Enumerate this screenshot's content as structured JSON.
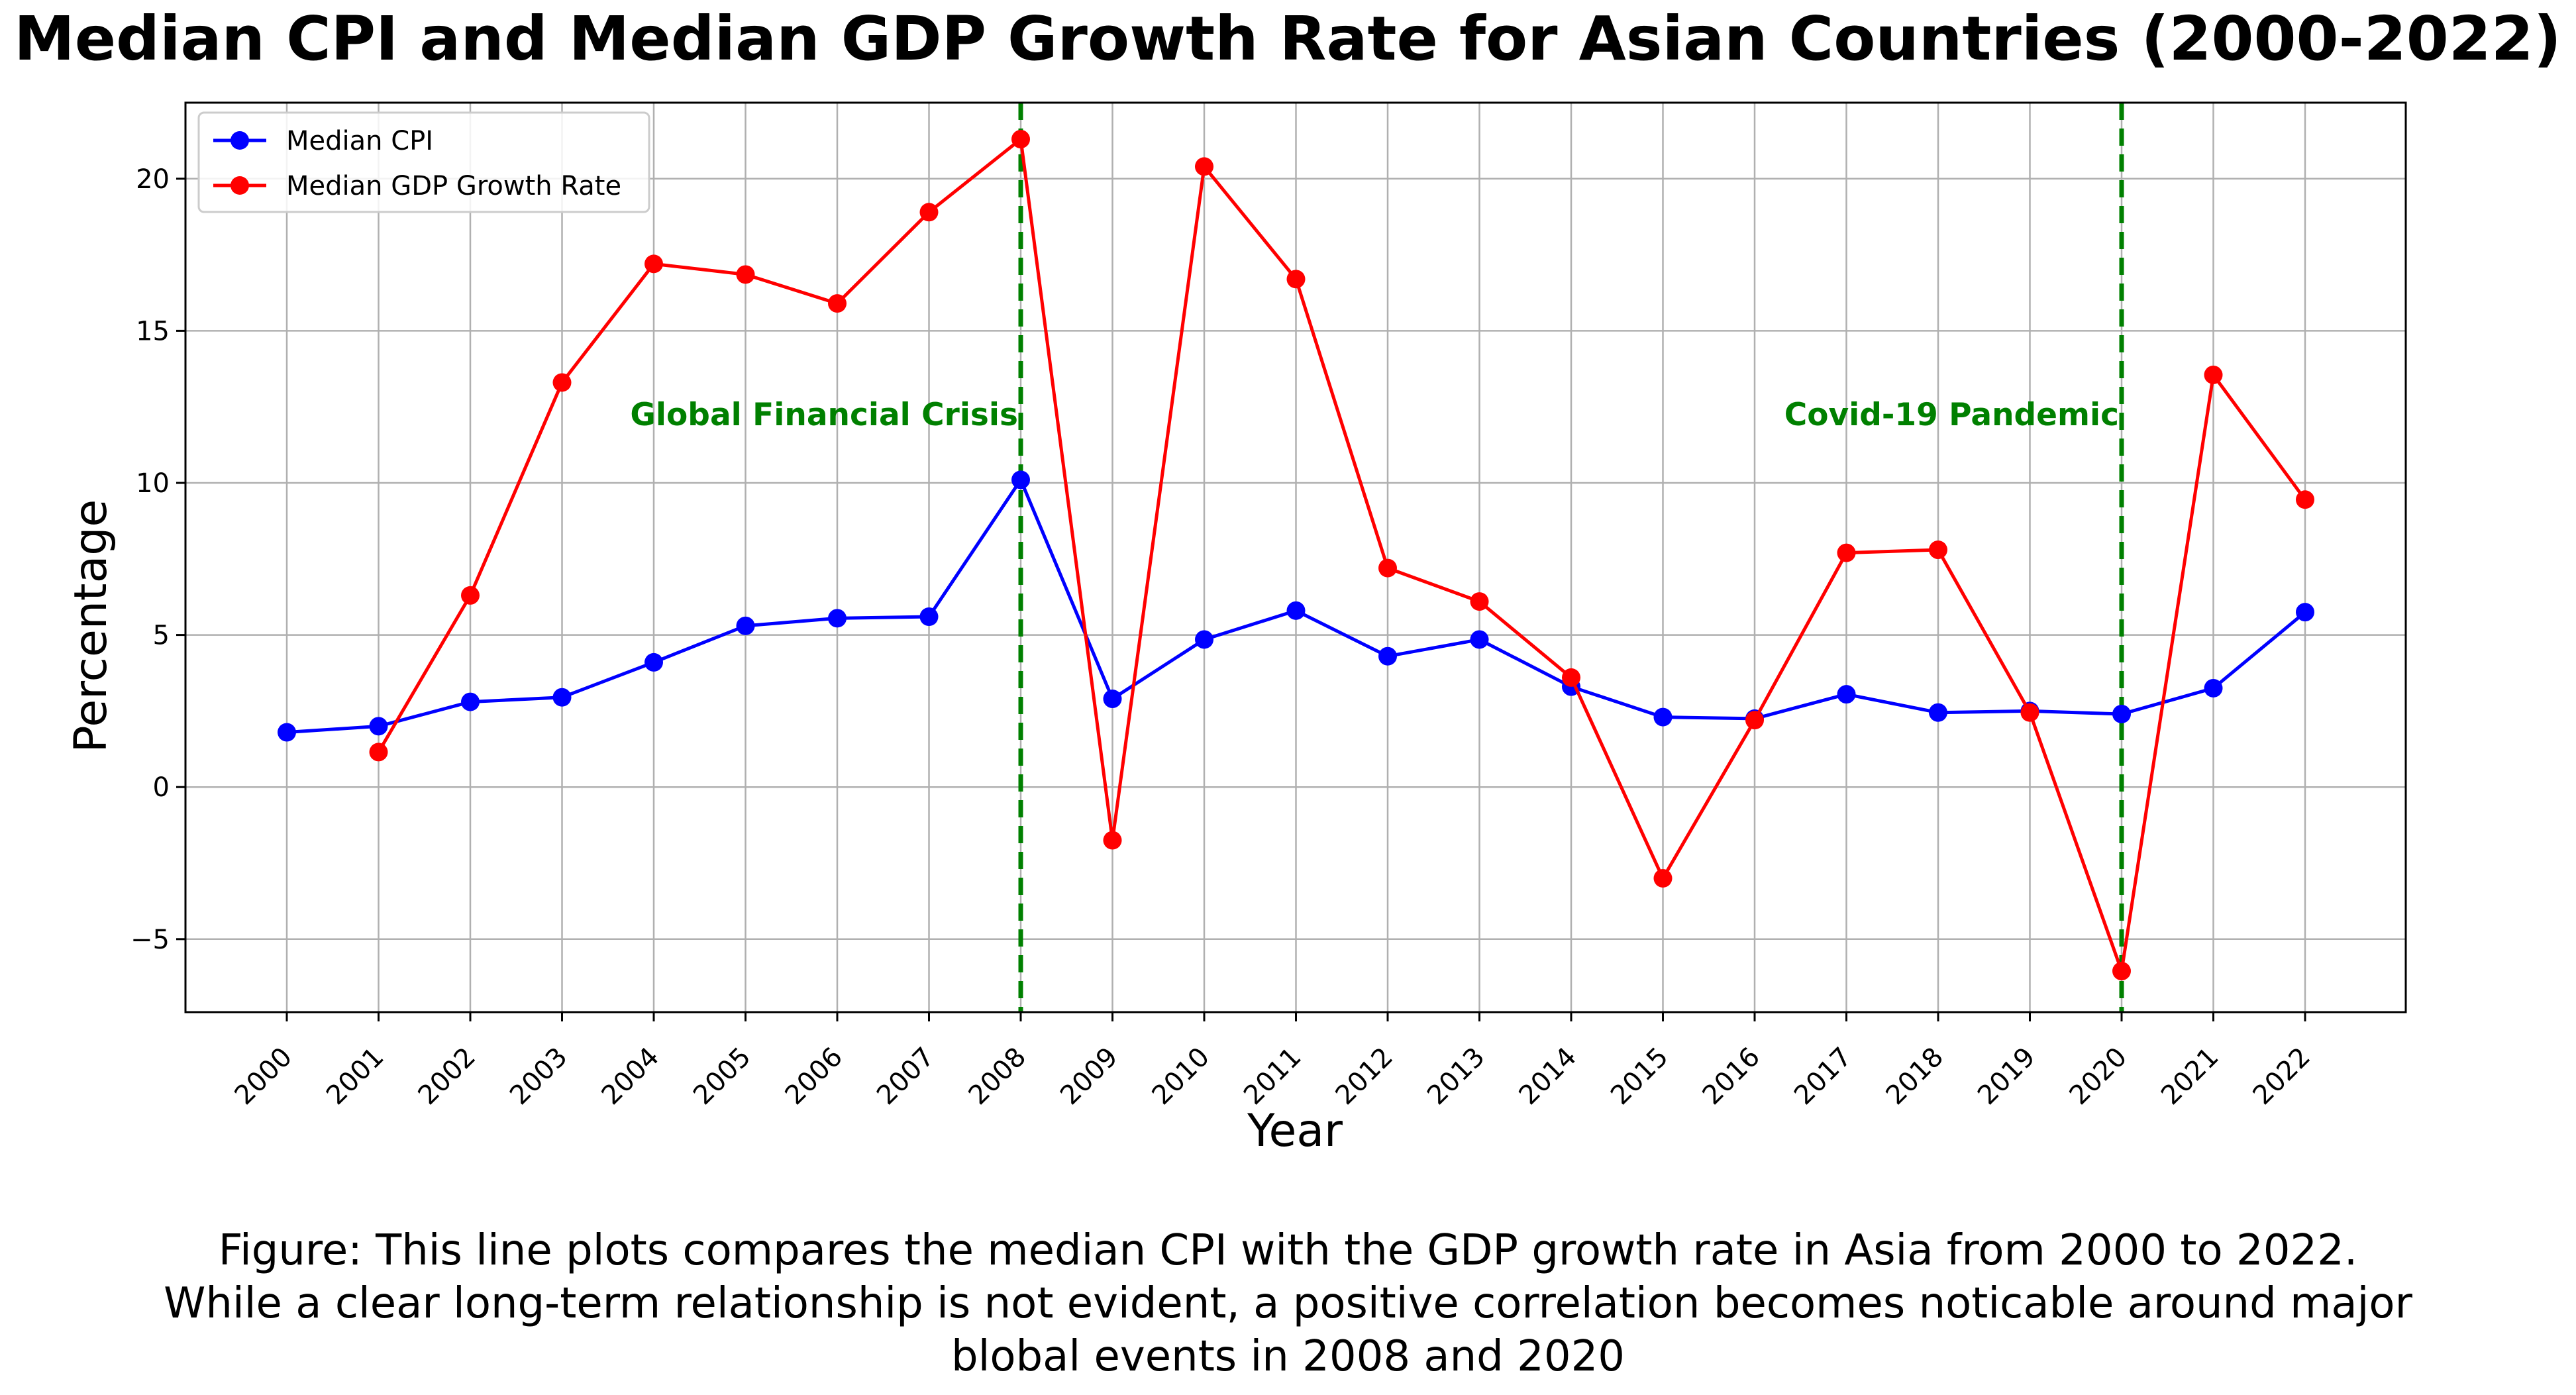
{
  "chart_data": {
    "type": "line",
    "title": "Median CPI and Median GDP Growth Rate for Asian Countries (2000-2022)",
    "xlabel": "Year",
    "ylabel": "Percentage",
    "categories": [
      "2000",
      "2001",
      "2002",
      "2003",
      "2004",
      "2005",
      "2006",
      "2007",
      "2008",
      "2009",
      "2010",
      "2011",
      "2012",
      "2013",
      "2014",
      "2015",
      "2016",
      "2017",
      "2018",
      "2019",
      "2020",
      "2021",
      "2022"
    ],
    "ylim": [
      -7.4,
      22.5
    ],
    "yticks": [
      -5,
      0,
      5,
      10,
      15,
      20
    ],
    "ytick_labels": [
      "−5",
      "0",
      "5",
      "10",
      "15",
      "20"
    ],
    "grid": true,
    "legend_position": "top-left",
    "series": [
      {
        "name": "Median CPI",
        "color": "#0000ff",
        "values": [
          1.8,
          2.0,
          2.8,
          2.95,
          4.1,
          5.3,
          5.55,
          5.6,
          10.1,
          2.9,
          4.85,
          5.8,
          4.3,
          4.85,
          3.3,
          2.3,
          2.25,
          3.05,
          2.45,
          2.5,
          2.4,
          3.25,
          5.75
        ]
      },
      {
        "name": "Median GDP Growth Rate",
        "color": "#ff0000",
        "values": [
          null,
          1.15,
          6.3,
          13.3,
          17.2,
          16.85,
          15.9,
          18.9,
          21.3,
          -1.75,
          20.4,
          16.7,
          7.2,
          6.1,
          3.6,
          -3.0,
          2.2,
          7.7,
          7.8,
          2.45,
          -6.05,
          13.55,
          9.45
        ]
      }
    ],
    "events": [
      {
        "year": "2008",
        "label": "Global Financial Crisis",
        "color": "#008000"
      },
      {
        "year": "2020",
        "label": "Covid-19 Pandemic",
        "color": "#008000"
      }
    ]
  },
  "caption": {
    "line1": "Figure: This line plots compares the median CPI with the GDP growth rate in Asia from 2000 to 2022.",
    "line2": "While a clear long-term relationship is not evident, a positive correlation becomes noticable around major",
    "line3": "blobal events in 2008 and 2020"
  }
}
